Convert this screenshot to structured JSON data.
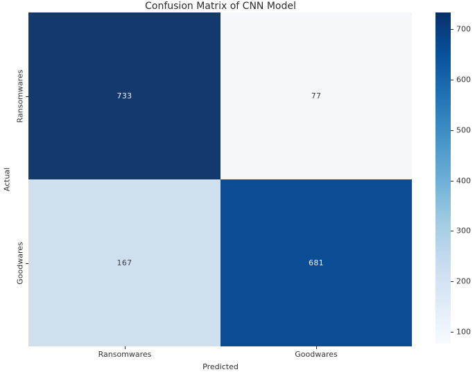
{
  "title": "Confusion Matrix of CNN Model",
  "axes": {
    "xlabel": "Predicted",
    "ylabel": "Actual",
    "xticklabels": [
      "Ransomwares",
      "Goodwares"
    ],
    "yticklabels": [
      "Ransomwares",
      "Goodwares"
    ]
  },
  "cells": [
    {
      "value": "733",
      "bg": "#14396e",
      "fg": "#eef2f7"
    },
    {
      "value": "77",
      "bg": "#f5f7fa",
      "fg": "#3b4046"
    },
    {
      "value": "167",
      "bg": "#d0dfee",
      "fg": "#3b4046"
    },
    {
      "value": "681",
      "bg": "#0b4d94",
      "fg": "#eef2f7"
    }
  ],
  "colorbar": {
    "ticks": [
      "700",
      "600",
      "500",
      "400",
      "300",
      "200",
      "100"
    ],
    "gradient": [
      "#f7fbff 0%",
      "#deebf7 12.5%",
      "#c6dbef 25%",
      "#9ecae1 37.5%",
      "#6baed6 50%",
      "#4292c6 62.5%",
      "#2171b5 75%",
      "#08519c 87.5%",
      "#08306b 100%"
    ]
  },
  "chart_data": {
    "type": "heatmap",
    "title": "Confusion Matrix of CNN Model",
    "xlabel": "Predicted",
    "ylabel": "Actual",
    "x_categories": [
      "Ransomwares",
      "Goodwares"
    ],
    "y_categories": [
      "Ransomwares",
      "Goodwares"
    ],
    "values": [
      [
        733,
        77
      ],
      [
        167,
        681
      ]
    ],
    "annotated": true,
    "colormap": "Blues",
    "vmin": 77,
    "vmax": 733,
    "colorbar_ticks": [
      100,
      200,
      300,
      400,
      500,
      600,
      700
    ],
    "colorbar_position": "right",
    "grid": false
  }
}
